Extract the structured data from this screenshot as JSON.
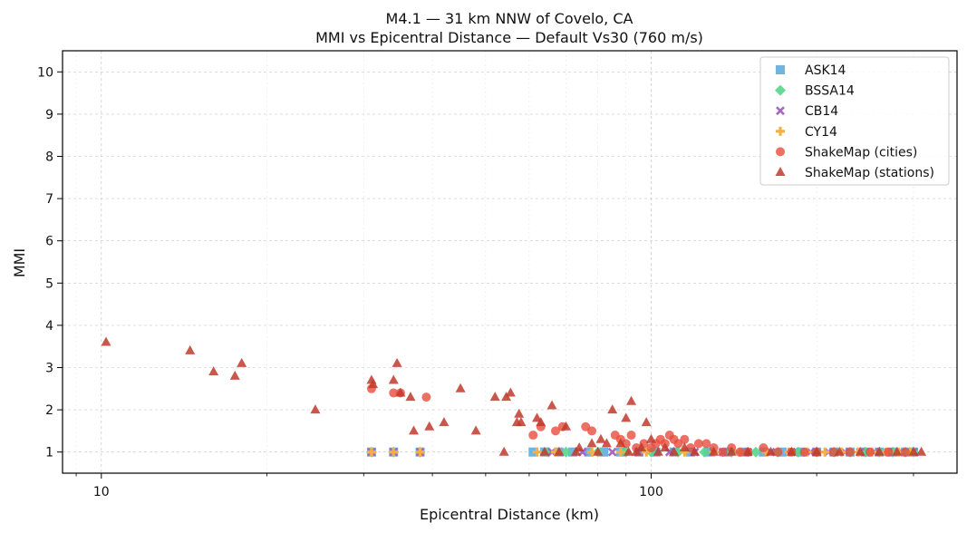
{
  "chart_data": {
    "type": "scatter",
    "title": "M4.1 — 31 km NNW of Covelo, CA",
    "subtitle": "MMI vs Epicentral Distance — Default Vs30 (760 m/s)",
    "xlabel": "Epicentral Distance (km)",
    "ylabel": "MMI",
    "xscale": "log",
    "xlim": [
      8.5,
      360
    ],
    "ylim": [
      0.5,
      10.5
    ],
    "x_ticks": [
      10,
      100
    ],
    "x_tick_labels": [
      "10",
      "100"
    ],
    "y_ticks": [
      1,
      2,
      3,
      4,
      5,
      6,
      7,
      8,
      9,
      10
    ],
    "y_tick_labels": [
      "1",
      "2",
      "3",
      "4",
      "5",
      "6",
      "7",
      "8",
      "9",
      "10"
    ],
    "grid": true,
    "legend_position": "top-right",
    "series": [
      {
        "name": "ASK14",
        "marker": "square",
        "color": "#5dade2",
        "x": [
          31,
          34,
          38,
          61,
          64,
          68,
          72,
          77,
          82,
          88,
          95,
          102,
          110,
          118,
          127,
          137,
          148,
          160,
          173,
          187,
          200,
          215,
          230,
          245,
          260,
          275,
          290,
          300
        ],
        "y": [
          1,
          1,
          1,
          1,
          1,
          1,
          1,
          1,
          1,
          1,
          1,
          1,
          1,
          1,
          1,
          1,
          1,
          1,
          1,
          1,
          1,
          1,
          1,
          1,
          1,
          1,
          1,
          1
        ]
      },
      {
        "name": "BSSA14",
        "marker": "diamond",
        "color": "#58d68d",
        "x": [
          31,
          34,
          38,
          65,
          70,
          80,
          90,
          100,
          112,
          125,
          140,
          155,
          170,
          185,
          200,
          215,
          230,
          245,
          260,
          275,
          290,
          300
        ],
        "y": [
          1,
          1,
          1,
          1,
          1,
          1,
          1,
          1,
          1,
          1,
          1,
          1,
          1,
          1,
          1,
          1,
          1,
          1,
          1,
          1,
          1,
          1
        ]
      },
      {
        "name": "CB14",
        "marker": "x",
        "color": "#a569bd",
        "x": [
          31,
          34,
          38,
          66,
          75,
          85,
          95,
          108,
          120,
          135,
          150,
          165,
          180,
          195,
          210,
          225,
          240,
          255,
          270,
          285,
          300
        ],
        "y": [
          1,
          1,
          1,
          1,
          1,
          1,
          1,
          1,
          1,
          1,
          1,
          1,
          1,
          1,
          1,
          1,
          1,
          1,
          1,
          1,
          1
        ]
      },
      {
        "name": "CY14",
        "marker": "plus",
        "color": "#f5b041",
        "x": [
          31,
          34,
          38,
          62,
          67,
          78,
          88,
          98,
          115,
          130,
          145,
          162,
          178,
          192,
          207,
          222,
          238,
          252,
          268,
          282,
          296
        ],
        "y": [
          1,
          1,
          1,
          1,
          1,
          1,
          1,
          1,
          1,
          1,
          1,
          1,
          1,
          1,
          1,
          1,
          1,
          1,
          1,
          1,
          1
        ]
      },
      {
        "name": "ShakeMap (cities)",
        "marker": "circle",
        "color": "#e74c3c",
        "x": [
          31,
          34,
          35,
          39,
          61,
          63,
          67,
          69,
          76,
          78,
          86,
          88,
          90,
          92,
          94,
          97,
          100,
          102,
          104,
          106,
          108,
          110,
          112,
          115,
          118,
          122,
          126,
          130,
          135,
          140,
          145,
          150,
          160,
          170,
          180,
          190,
          200,
          215,
          230,
          250,
          270,
          290
        ],
        "y": [
          2.5,
          2.4,
          2.4,
          2.3,
          1.4,
          1.6,
          1.5,
          1.6,
          1.6,
          1.5,
          1.4,
          1.3,
          1.2,
          1.4,
          1.1,
          1.2,
          1.1,
          1.2,
          1.3,
          1.2,
          1.4,
          1.3,
          1.2,
          1.3,
          1.1,
          1.2,
          1.2,
          1.1,
          1.0,
          1.1,
          1.0,
          1.0,
          1.1,
          1.0,
          1.0,
          1.0,
          1.0,
          1.0,
          1.0,
          1.0,
          1.0,
          1.0
        ]
      },
      {
        "name": "ShakeMap (stations)",
        "marker": "triangle",
        "color": "#c0392b",
        "x": [
          10.2,
          14.5,
          16,
          17.5,
          18,
          24.5,
          31,
          31.2,
          34,
          34.5,
          35,
          36.5,
          37,
          39.5,
          42,
          45,
          48,
          52,
          54.5,
          54,
          55.5,
          57,
          57.5,
          58,
          62,
          63,
          64,
          66,
          68,
          70,
          73,
          74,
          78,
          80,
          81,
          83,
          85,
          88,
          90,
          91,
          92,
          94,
          96,
          98,
          100,
          103,
          106,
          110,
          115,
          120,
          130,
          140,
          150,
          165,
          180,
          200,
          220,
          240,
          260,
          280,
          300,
          310
        ],
        "y": [
          3.6,
          3.4,
          2.9,
          2.8,
          3.1,
          2.0,
          2.7,
          2.6,
          2.7,
          3.1,
          2.4,
          2.3,
          1.5,
          1.6,
          1.7,
          2.5,
          1.5,
          2.3,
          2.3,
          1.0,
          2.4,
          1.7,
          1.9,
          1.7,
          1.8,
          1.7,
          1.0,
          2.1,
          1.0,
          1.6,
          1.0,
          1.1,
          1.2,
          1.0,
          1.3,
          1.2,
          2.0,
          1.2,
          1.8,
          1.0,
          2.2,
          1.0,
          1.1,
          1.7,
          1.3,
          1.0,
          1.1,
          1.0,
          1.1,
          1.0,
          1.0,
          1.0,
          1.0,
          1.0,
          1.0,
          1.0,
          1.0,
          1.0,
          1.0,
          1.0,
          1.0,
          1.0
        ]
      }
    ]
  }
}
